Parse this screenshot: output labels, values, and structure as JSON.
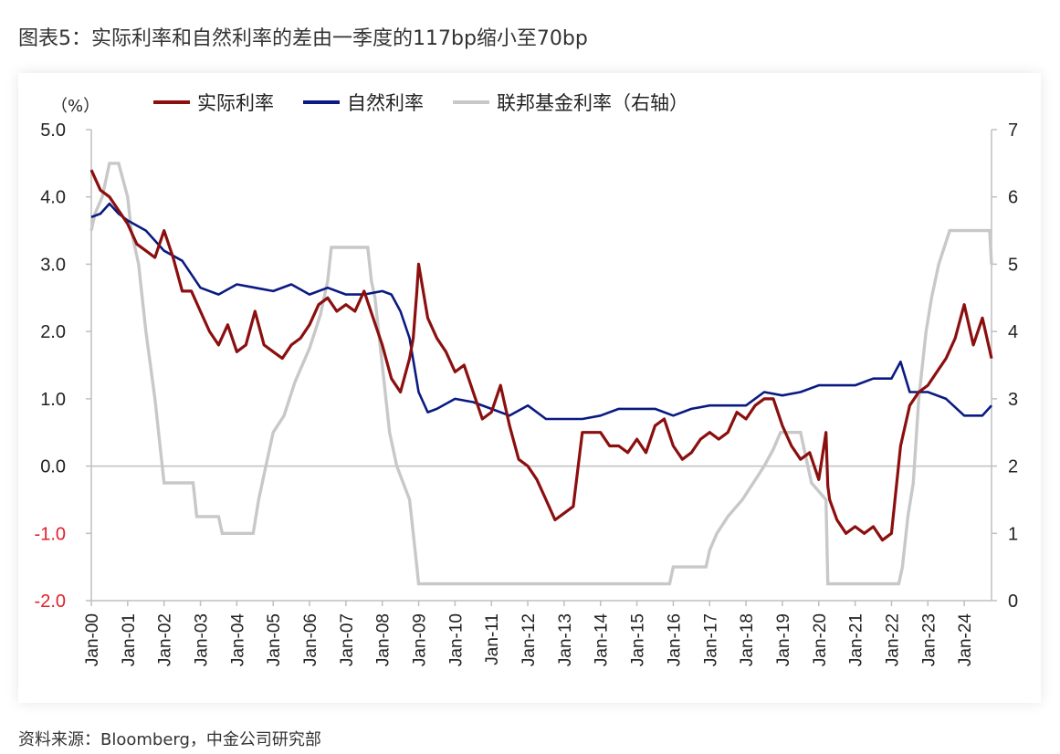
{
  "title": "图表5：实际利率和自然利率的差由一季度的117bp缩小至70bp",
  "source": "资料来源：Bloomberg，中金公司研究部",
  "chart_data": {
    "type": "line",
    "left_axis_unit": "（%）",
    "left_axis": {
      "min": -2,
      "max": 5,
      "ticks": [
        "5.0",
        "4.0",
        "3.0",
        "2.0",
        "1.0",
        "0.0",
        "-1.0",
        "-2.0"
      ],
      "negative_tick_color": "#e0202a"
    },
    "right_axis": {
      "min": 0,
      "max": 7,
      "ticks": [
        "7",
        "6",
        "5",
        "4",
        "3",
        "2",
        "1",
        "0"
      ]
    },
    "x_ticks": [
      "Jan-00",
      "Jan-01",
      "Jan-02",
      "Jan-03",
      "Jan-04",
      "Jan-05",
      "Jan-06",
      "Jan-07",
      "Jan-08",
      "Jan-09",
      "Jan-10",
      "Jan-11",
      "Jan-12",
      "Jan-13",
      "Jan-14",
      "Jan-15",
      "Jan-16",
      "Jan-17",
      "Jan-18",
      "Jan-19",
      "Jan-20",
      "Jan-21",
      "Jan-22",
      "Jan-23",
      "Jan-24"
    ],
    "x_range": [
      2000.0,
      2024.75
    ],
    "legend_position": "top",
    "grid": false,
    "series": [
      {
        "name": "实际利率",
        "axis": "left",
        "color": "#8b0f0f",
        "width": 3.2,
        "x": [
          2000.0,
          2000.25,
          2000.5,
          2000.75,
          2001.0,
          2001.25,
          2001.5,
          2001.75,
          2002.0,
          2002.25,
          2002.5,
          2002.75,
          2003.0,
          2003.25,
          2003.5,
          2003.75,
          2004.0,
          2004.25,
          2004.5,
          2004.75,
          2005.0,
          2005.25,
          2005.5,
          2005.75,
          2006.0,
          2006.25,
          2006.5,
          2006.75,
          2007.0,
          2007.25,
          2007.5,
          2007.75,
          2008.0,
          2008.25,
          2008.5,
          2008.75,
          2008.85,
          2008.95,
          2009.0,
          2009.25,
          2009.5,
          2009.75,
          2010.0,
          2010.25,
          2010.5,
          2010.75,
          2011.0,
          2011.25,
          2011.5,
          2011.75,
          2012.0,
          2012.25,
          2012.5,
          2012.75,
          2013.0,
          2013.25,
          2013.5,
          2013.75,
          2014.0,
          2014.25,
          2014.5,
          2014.75,
          2015.0,
          2015.25,
          2015.5,
          2015.75,
          2016.0,
          2016.25,
          2016.5,
          2016.75,
          2017.0,
          2017.25,
          2017.5,
          2017.75,
          2018.0,
          2018.25,
          2018.5,
          2018.75,
          2019.0,
          2019.25,
          2019.5,
          2019.75,
          2020.0,
          2020.2,
          2020.25,
          2020.3,
          2020.5,
          2020.75,
          2021.0,
          2021.25,
          2021.5,
          2021.75,
          2022.0,
          2022.25,
          2022.5,
          2022.75,
          2023.0,
          2023.25,
          2023.5,
          2023.75,
          2024.0,
          2024.25,
          2024.5,
          2024.75
        ],
        "y": [
          4.4,
          4.1,
          4.0,
          3.8,
          3.6,
          3.3,
          3.2,
          3.1,
          3.5,
          3.1,
          2.6,
          2.6,
          2.3,
          2.0,
          1.8,
          2.1,
          1.7,
          1.8,
          2.3,
          1.8,
          1.7,
          1.6,
          1.8,
          1.9,
          2.1,
          2.4,
          2.5,
          2.3,
          2.4,
          2.3,
          2.6,
          2.2,
          1.8,
          1.3,
          1.1,
          1.6,
          1.9,
          2.6,
          3.0,
          2.2,
          1.9,
          1.7,
          1.4,
          1.5,
          1.1,
          0.7,
          0.8,
          1.2,
          0.6,
          0.1,
          0.0,
          -0.2,
          -0.5,
          -0.8,
          -0.7,
          -0.6,
          0.5,
          0.5,
          0.5,
          0.3,
          0.3,
          0.2,
          0.4,
          0.2,
          0.6,
          0.7,
          0.3,
          0.1,
          0.2,
          0.4,
          0.5,
          0.4,
          0.5,
          0.8,
          0.7,
          0.9,
          1.0,
          1.0,
          0.6,
          0.3,
          0.1,
          0.2,
          -0.2,
          0.5,
          -0.3,
          -0.5,
          -0.8,
          -1.0,
          -0.9,
          -1.0,
          -0.9,
          -1.1,
          -1.0,
          0.3,
          0.9,
          1.1,
          1.2,
          1.4,
          1.6,
          1.9,
          2.4,
          1.8,
          2.2,
          1.6
        ]
      },
      {
        "name": "自然利率",
        "axis": "left",
        "color": "#0a1a82",
        "width": 2.6,
        "x": [
          2000.0,
          2000.25,
          2000.5,
          2000.75,
          2001.0,
          2001.5,
          2002.0,
          2002.5,
          2003.0,
          2003.5,
          2004.0,
          2004.5,
          2005.0,
          2005.5,
          2006.0,
          2006.5,
          2007.0,
          2007.5,
          2008.0,
          2008.25,
          2008.5,
          2008.75,
          2009.0,
          2009.25,
          2009.5,
          2010.0,
          2010.5,
          2011.0,
          2011.5,
          2012.0,
          2012.5,
          2013.0,
          2013.5,
          2014.0,
          2014.5,
          2015.0,
          2015.5,
          2016.0,
          2016.5,
          2017.0,
          2017.5,
          2018.0,
          2018.5,
          2019.0,
          2019.5,
          2020.0,
          2020.5,
          2021.0,
          2021.5,
          2022.0,
          2022.25,
          2022.5,
          2022.75,
          2023.0,
          2023.5,
          2024.0,
          2024.5,
          2024.75
        ],
        "y": [
          3.7,
          3.75,
          3.9,
          3.75,
          3.65,
          3.5,
          3.2,
          3.05,
          2.65,
          2.55,
          2.7,
          2.65,
          2.6,
          2.7,
          2.55,
          2.65,
          2.55,
          2.55,
          2.6,
          2.55,
          2.3,
          1.9,
          1.1,
          0.8,
          0.85,
          1.0,
          0.95,
          0.85,
          0.75,
          0.9,
          0.7,
          0.7,
          0.7,
          0.75,
          0.85,
          0.85,
          0.85,
          0.75,
          0.85,
          0.9,
          0.9,
          0.9,
          1.1,
          1.05,
          1.1,
          1.2,
          1.2,
          1.2,
          1.3,
          1.3,
          1.55,
          1.1,
          1.1,
          1.1,
          1.0,
          0.75,
          0.75,
          0.9
        ]
      },
      {
        "name": "联邦基金利率（右轴）",
        "axis": "right",
        "color": "#c8c8c8",
        "width": 3.4,
        "x": [
          2000.0,
          2000.1,
          2000.3,
          2000.5,
          2000.75,
          2001.0,
          2001.1,
          2001.3,
          2001.5,
          2001.75,
          2001.95,
          2002.0,
          2002.8,
          2002.9,
          2003.5,
          2003.6,
          2004.45,
          2004.6,
          2004.8,
          2005.0,
          2005.3,
          2005.6,
          2006.0,
          2006.3,
          2006.5,
          2006.6,
          2007.6,
          2007.7,
          2007.8,
          2008.0,
          2008.2,
          2008.4,
          2008.75,
          2008.95,
          2009.0,
          2015.9,
          2016.0,
          2016.9,
          2017.0,
          2017.2,
          2017.5,
          2017.9,
          2018.2,
          2018.5,
          2018.75,
          2018.95,
          2019.5,
          2019.6,
          2019.8,
          2020.2,
          2020.25,
          2022.2,
          2022.3,
          2022.45,
          2022.6,
          2022.75,
          2022.95,
          2023.1,
          2023.3,
          2023.6,
          2024.7,
          2024.75
        ],
        "y": [
          5.5,
          5.75,
          6.0,
          6.5,
          6.5,
          6.0,
          5.5,
          5.0,
          4.0,
          3.0,
          2.0,
          1.75,
          1.75,
          1.25,
          1.25,
          1.0,
          1.0,
          1.5,
          2.0,
          2.5,
          2.75,
          3.25,
          3.75,
          4.25,
          4.75,
          5.25,
          5.25,
          4.75,
          4.5,
          3.5,
          2.5,
          2.0,
          1.5,
          0.5,
          0.25,
          0.25,
          0.5,
          0.5,
          0.75,
          1.0,
          1.25,
          1.5,
          1.75,
          2.0,
          2.25,
          2.5,
          2.5,
          2.25,
          1.75,
          1.5,
          0.25,
          0.25,
          0.5,
          1.25,
          1.75,
          3.0,
          4.0,
          4.5,
          5.0,
          5.5,
          5.5,
          5.0
        ]
      }
    ]
  }
}
